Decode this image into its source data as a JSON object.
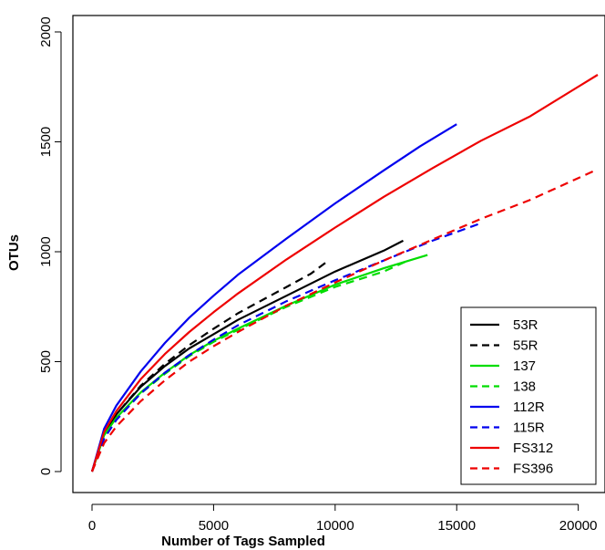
{
  "chart_data": {
    "type": "line",
    "title": "",
    "xlabel": "Number of Tags Sampled",
    "ylabel": "OTUs",
    "xlim": [
      0,
      20800
    ],
    "ylim": [
      0,
      2000
    ],
    "xticks": [
      0,
      5000,
      10000,
      15000,
      20000
    ],
    "yticks": [
      0,
      500,
      1000,
      1500,
      2000
    ],
    "grid": false,
    "legend_position": "bottom-right",
    "series": [
      {
        "name": "53R",
        "color": "#000000",
        "dash": "solid",
        "x": [
          0,
          500,
          1000,
          2000,
          3000,
          4000,
          5000,
          6000,
          8000,
          10000,
          12000,
          12800
        ],
        "y": [
          0,
          175,
          260,
          385,
          480,
          560,
          625,
          690,
          800,
          910,
          1005,
          1050
        ]
      },
      {
        "name": "55R",
        "color": "#000000",
        "dash": "dashed",
        "x": [
          0,
          500,
          1000,
          2000,
          3000,
          4000,
          5000,
          6000,
          7000,
          8000,
          9000,
          9600
        ],
        "y": [
          0,
          170,
          260,
          390,
          490,
          575,
          650,
          720,
          780,
          840,
          900,
          950
        ]
      },
      {
        "name": "137",
        "color": "#00dd00",
        "dash": "solid",
        "x": [
          0,
          500,
          1000,
          2000,
          3000,
          4000,
          5000,
          6000,
          8000,
          10000,
          12000,
          13800
        ],
        "y": [
          0,
          165,
          245,
          360,
          450,
          530,
          595,
          650,
          755,
          850,
          925,
          985
        ]
      },
      {
        "name": "138",
        "color": "#00dd00",
        "dash": "dashed",
        "x": [
          0,
          500,
          1000,
          2000,
          3000,
          4000,
          5000,
          6000,
          8000,
          10000,
          12000,
          13000
        ],
        "y": [
          0,
          160,
          240,
          355,
          445,
          525,
          590,
          645,
          750,
          840,
          910,
          960
        ]
      },
      {
        "name": "112R",
        "color": "#0000ee",
        "dash": "solid",
        "x": [
          0,
          500,
          1000,
          2000,
          3000,
          4000,
          5000,
          6000,
          8000,
          10000,
          12000,
          13500,
          15000
        ],
        "y": [
          0,
          195,
          300,
          455,
          585,
          700,
          800,
          895,
          1060,
          1220,
          1370,
          1480,
          1580
        ]
      },
      {
        "name": "115R",
        "color": "#0000ee",
        "dash": "dashed",
        "x": [
          0,
          500,
          1000,
          2000,
          3000,
          4000,
          5000,
          6000,
          8000,
          10000,
          12000,
          14000,
          16000
        ],
        "y": [
          0,
          150,
          235,
          355,
          450,
          530,
          600,
          665,
          775,
          870,
          960,
          1050,
          1130
        ]
      },
      {
        "name": "FS312",
        "color": "#ee0000",
        "dash": "solid",
        "x": [
          0,
          500,
          1000,
          2000,
          3000,
          4000,
          5000,
          6000,
          8000,
          10000,
          12000,
          14000,
          16000,
          18000,
          20800
        ],
        "y": [
          0,
          180,
          275,
          420,
          535,
          635,
          725,
          810,
          965,
          1110,
          1250,
          1380,
          1505,
          1615,
          1805
        ]
      },
      {
        "name": "FS396",
        "color": "#ee0000",
        "dash": "dashed",
        "x": [
          0,
          500,
          1000,
          2000,
          3000,
          4000,
          5000,
          6000,
          8000,
          10000,
          12000,
          14000,
          16000,
          18000,
          20800
        ],
        "y": [
          0,
          130,
          205,
          320,
          415,
          500,
          570,
          635,
          755,
          860,
          960,
          1055,
          1150,
          1235,
          1375
        ]
      }
    ]
  }
}
